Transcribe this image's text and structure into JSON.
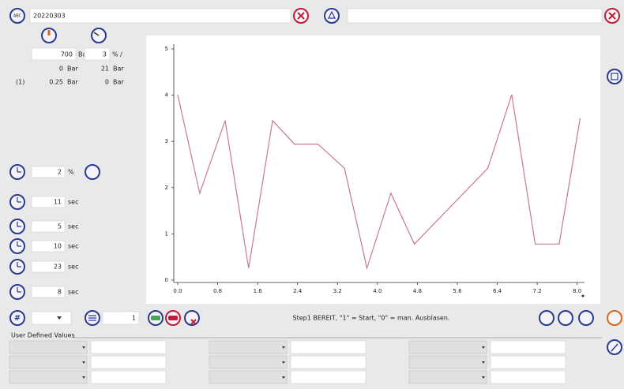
{
  "top": {
    "icon_label": "ABC",
    "field1": "20220303"
  },
  "pressure": {
    "setpoint": {
      "value": "700",
      "unit": "Bar"
    },
    "percent": {
      "value": "3",
      "unit": "% /"
    },
    "min": {
      "value": "0",
      "unit": "Bar"
    },
    "max": {
      "value": "21",
      "unit": "Bar"
    },
    "index": "(1)",
    "actual": {
      "value": "0.25",
      "unit": "Bar"
    },
    "actual2": {
      "value": "0",
      "unit": "Bar"
    }
  },
  "timers": [
    {
      "value": "2",
      "unit": "%"
    },
    {
      "value": "11",
      "unit": "sec"
    },
    {
      "value": "5",
      "unit": "sec"
    },
    {
      "value": "10",
      "unit": "sec"
    },
    {
      "value": "23",
      "unit": "sec"
    },
    {
      "value": "8",
      "unit": "sec"
    }
  ],
  "bottom": {
    "hash": "#",
    "counter": "1",
    "status": "Step1 BEREIT, \"1\" = Start, \"0\" = man. Ausblasen."
  },
  "user_defined": {
    "title": "User Defined Values"
  },
  "chart_data": {
    "type": "line",
    "color": "#c9798f",
    "x": [
      0,
      0.44,
      0.95,
      1.42,
      1.9,
      2.34,
      2.81,
      3.34,
      3.79,
      4.27,
      4.74,
      6.21,
      6.69,
      7.16,
      7.64,
      8.06
    ],
    "values": [
      4.01,
      1.88,
      3.45,
      0.26,
      3.45,
      2.94,
      2.94,
      2.42,
      0.26,
      1.88,
      0.78,
      2.42,
      4.01,
      0.78,
      0.78,
      3.5
    ],
    "xlim": [
      0,
      8.1
    ],
    "xticks": [
      {
        "value": 0,
        "label": "0.0"
      },
      0.8,
      1.6,
      2.4,
      3.2,
      {
        "value": 4,
        "label": "4.0"
      },
      4.8,
      5.6,
      6.4,
      7.2,
      {
        "value": 8,
        "label": "8.0"
      }
    ],
    "ylim": [
      0,
      5
    ],
    "yticks": [
      0,
      1,
      2,
      3,
      4,
      5
    ]
  }
}
